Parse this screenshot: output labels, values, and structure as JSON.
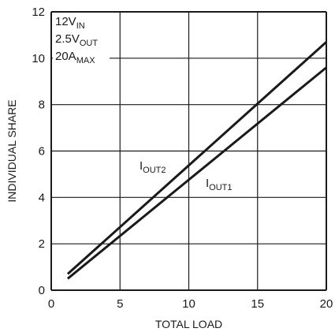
{
  "chart_data": {
    "type": "line",
    "title": "",
    "xlabel": "TOTAL LOAD",
    "ylabel": "INDIVIDUAL SHARE",
    "xlim": [
      0,
      20
    ],
    "ylim": [
      0,
      12
    ],
    "xticks": [
      "0",
      "5",
      "10",
      "15",
      "20"
    ],
    "yticks": [
      "0",
      "2",
      "4",
      "6",
      "8",
      "10",
      "12"
    ],
    "grid": true,
    "conditions": [
      {
        "main": "12V",
        "sub": "IN"
      },
      {
        "main": "2.5V",
        "sub": "OUT"
      },
      {
        "main": "20A",
        "sub": "MAX"
      }
    ],
    "series": [
      {
        "name": "IOUT2",
        "label_main": "I",
        "label_sub": "OUT2",
        "x": [
          1.2,
          20
        ],
        "y": [
          0.7,
          10.7
        ]
      },
      {
        "name": "IOUT1",
        "label_main": "I",
        "label_sub": "OUT1",
        "x": [
          1.2,
          20
        ],
        "y": [
          0.5,
          9.6
        ]
      }
    ]
  }
}
